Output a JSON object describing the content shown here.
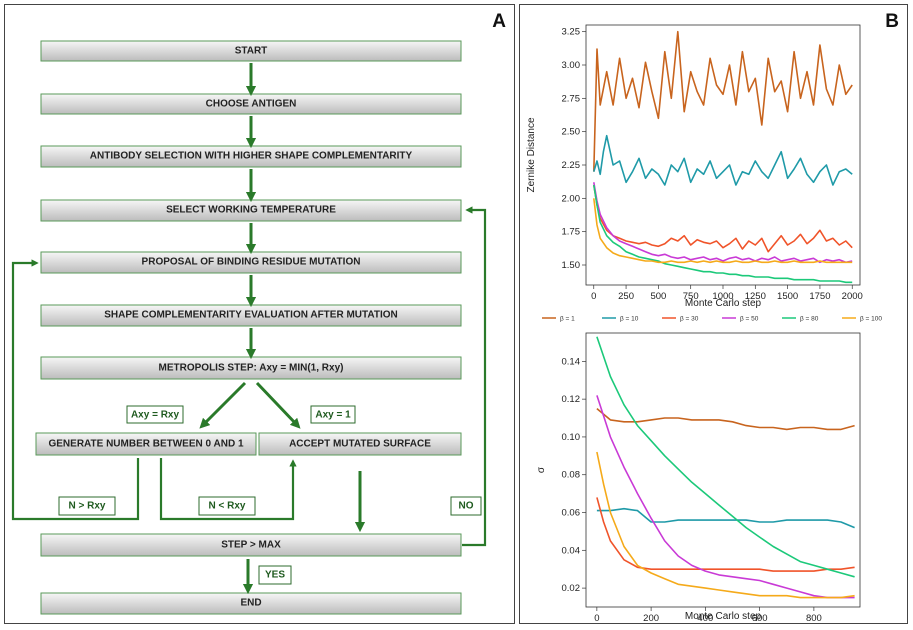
{
  "panel_a": {
    "letter": "A",
    "steps": [
      "START",
      "CHOOSE ANTIGEN",
      "ANTIBODY SELECTION WITH HIGHER  SHAPE COMPLEMENTARITY",
      "SELECT WORKING TEMPERATURE",
      "PROPOSAL OF BINDING  RESIDUE MUTATION",
      "SHAPE COMPLEMENTARITY EVALUATION AFTER MUTATION",
      "METROPOLIS STEP: Axy = MIN(1, Rxy)",
      "GENERATE NUMBER BETWEEN 0 AND 1",
      "ACCEPT MUTATED SURFACE",
      "STEP > MAX",
      "END"
    ],
    "labels": {
      "axy_rxy": "Axy = Rxy",
      "axy_1": "Axy = 1",
      "n_gt": "N > Rxy",
      "n_lt": "N < Rxy",
      "no": "NO",
      "yes": "YES"
    },
    "colors": {
      "arrow": "#2a7a2a",
      "box_top": "#f4f4f4",
      "box_bottom": "#bdbdbd",
      "box_border": "#5a9a5a"
    }
  },
  "panel_b": {
    "letter": "B",
    "series_colors": [
      "#c8641e",
      "#1f9aa8",
      "#f0542a",
      "#c93ad6",
      "#1cc97a",
      "#f5aa1a"
    ],
    "legend": [
      "β = 1",
      "β = 10",
      "β = 30",
      "β = 50",
      "β = 80",
      "β = 100"
    ]
  },
  "chart_data": [
    {
      "type": "line",
      "title": "",
      "xlabel": "Monte Carlo step",
      "ylabel": "Zernike Distance",
      "xlim": [
        -60,
        2060
      ],
      "ylim": [
        1.35,
        3.3
      ],
      "xticks": [
        0,
        250,
        500,
        750,
        1000,
        1250,
        1500,
        1750,
        2000
      ],
      "yticks": [
        1.5,
        1.75,
        2.0,
        2.25,
        2.5,
        2.75,
        3.0,
        3.25
      ],
      "series": [
        {
          "name": "β = 1",
          "color": "#c8641e",
          "x": [
            0,
            25,
            50,
            100,
            150,
            200,
            250,
            300,
            350,
            400,
            450,
            500,
            550,
            600,
            650,
            700,
            750,
            800,
            850,
            900,
            950,
            1000,
            1050,
            1100,
            1150,
            1200,
            1250,
            1300,
            1350,
            1400,
            1450,
            1500,
            1550,
            1600,
            1650,
            1700,
            1750,
            1800,
            1850,
            1900,
            1950,
            2000
          ],
          "values": [
            2.2,
            3.12,
            2.7,
            2.95,
            2.7,
            3.05,
            2.75,
            2.9,
            2.68,
            3.02,
            2.8,
            2.6,
            3.1,
            2.75,
            3.25,
            2.65,
            2.95,
            2.8,
            2.7,
            3.05,
            2.85,
            2.78,
            3.0,
            2.7,
            3.1,
            2.8,
            2.9,
            2.55,
            3.05,
            2.8,
            2.88,
            2.65,
            3.1,
            2.75,
            2.95,
            2.7,
            3.15,
            2.82,
            2.7,
            3.0,
            2.78,
            2.85
          ]
        },
        {
          "name": "β = 10",
          "color": "#1f9aa8",
          "x": [
            0,
            25,
            50,
            75,
            100,
            150,
            200,
            250,
            300,
            350,
            400,
            450,
            500,
            550,
            600,
            650,
            700,
            750,
            800,
            850,
            900,
            950,
            1000,
            1050,
            1100,
            1150,
            1200,
            1250,
            1300,
            1350,
            1400,
            1450,
            1500,
            1550,
            1600,
            1650,
            1700,
            1750,
            1800,
            1850,
            1900,
            1950,
            2000
          ],
          "values": [
            2.2,
            2.28,
            2.18,
            2.35,
            2.47,
            2.25,
            2.28,
            2.12,
            2.2,
            2.3,
            2.15,
            2.22,
            2.18,
            2.1,
            2.25,
            2.2,
            2.3,
            2.12,
            2.22,
            2.18,
            2.28,
            2.15,
            2.2,
            2.25,
            2.1,
            2.2,
            2.18,
            2.28,
            2.2,
            2.15,
            2.25,
            2.35,
            2.15,
            2.22,
            2.3,
            2.18,
            2.12,
            2.2,
            2.25,
            2.1,
            2.2,
            2.22,
            2.18
          ]
        },
        {
          "name": "β = 30",
          "color": "#f0542a",
          "x": [
            0,
            25,
            50,
            100,
            150,
            200,
            250,
            300,
            350,
            400,
            450,
            500,
            550,
            600,
            650,
            700,
            750,
            800,
            850,
            900,
            950,
            1000,
            1050,
            1100,
            1150,
            1200,
            1250,
            1300,
            1350,
            1400,
            1450,
            1500,
            1550,
            1600,
            1650,
            1700,
            1750,
            1800,
            1850,
            1900,
            1950,
            2000
          ],
          "values": [
            2.1,
            1.95,
            1.85,
            1.76,
            1.72,
            1.7,
            1.68,
            1.67,
            1.66,
            1.67,
            1.65,
            1.64,
            1.66,
            1.7,
            1.68,
            1.72,
            1.65,
            1.69,
            1.67,
            1.66,
            1.68,
            1.63,
            1.66,
            1.7,
            1.62,
            1.68,
            1.65,
            1.7,
            1.6,
            1.66,
            1.72,
            1.65,
            1.68,
            1.73,
            1.66,
            1.7,
            1.76,
            1.68,
            1.7,
            1.65,
            1.68,
            1.63
          ]
        },
        {
          "name": "β = 50",
          "color": "#c93ad6",
          "x": [
            0,
            25,
            50,
            100,
            150,
            200,
            250,
            300,
            350,
            400,
            450,
            500,
            550,
            600,
            650,
            700,
            750,
            800,
            850,
            900,
            950,
            1000,
            1050,
            1100,
            1150,
            1200,
            1250,
            1300,
            1350,
            1400,
            1450,
            1500,
            1550,
            1600,
            1650,
            1700,
            1750,
            1800,
            1850,
            1900,
            1950,
            2000
          ],
          "values": [
            2.12,
            1.98,
            1.88,
            1.78,
            1.72,
            1.68,
            1.66,
            1.64,
            1.62,
            1.6,
            1.58,
            1.57,
            1.58,
            1.56,
            1.55,
            1.56,
            1.54,
            1.55,
            1.56,
            1.54,
            1.55,
            1.53,
            1.55,
            1.56,
            1.54,
            1.55,
            1.53,
            1.55,
            1.54,
            1.56,
            1.53,
            1.54,
            1.55,
            1.53,
            1.54,
            1.55,
            1.52,
            1.54,
            1.53,
            1.54,
            1.52,
            1.53
          ]
        },
        {
          "name": "β = 80",
          "color": "#1cc97a",
          "x": [
            0,
            25,
            50,
            100,
            150,
            200,
            250,
            300,
            350,
            400,
            450,
            500,
            550,
            600,
            650,
            700,
            750,
            800,
            850,
            900,
            950,
            1000,
            1050,
            1100,
            1150,
            1200,
            1250,
            1300,
            1350,
            1400,
            1450,
            1500,
            1550,
            1600,
            1650,
            1700,
            1750,
            1800,
            1850,
            1900,
            1950,
            2000
          ],
          "values": [
            2.1,
            1.95,
            1.82,
            1.72,
            1.67,
            1.64,
            1.6,
            1.58,
            1.56,
            1.55,
            1.54,
            1.53,
            1.51,
            1.5,
            1.49,
            1.48,
            1.47,
            1.46,
            1.45,
            1.45,
            1.44,
            1.44,
            1.43,
            1.43,
            1.42,
            1.42,
            1.41,
            1.41,
            1.41,
            1.4,
            1.4,
            1.4,
            1.39,
            1.39,
            1.39,
            1.39,
            1.38,
            1.38,
            1.38,
            1.38,
            1.37,
            1.37
          ]
        },
        {
          "name": "β = 100",
          "color": "#f5aa1a",
          "x": [
            0,
            25,
            50,
            100,
            150,
            200,
            250,
            300,
            350,
            400,
            450,
            500,
            550,
            600,
            650,
            700,
            750,
            800,
            850,
            900,
            950,
            1000,
            1050,
            1100,
            1150,
            1200,
            1250,
            1300,
            1350,
            1400,
            1450,
            1500,
            1550,
            1600,
            1650,
            1700,
            1750,
            1800,
            1850,
            1900,
            1950,
            2000
          ],
          "values": [
            2.0,
            1.8,
            1.7,
            1.63,
            1.59,
            1.57,
            1.56,
            1.55,
            1.54,
            1.53,
            1.53,
            1.52,
            1.52,
            1.53,
            1.52,
            1.52,
            1.53,
            1.52,
            1.53,
            1.52,
            1.53,
            1.52,
            1.52,
            1.53,
            1.52,
            1.52,
            1.53,
            1.52,
            1.52,
            1.53,
            1.52,
            1.52,
            1.53,
            1.52,
            1.52,
            1.52,
            1.53,
            1.52,
            1.52,
            1.52,
            1.52,
            1.52
          ]
        }
      ]
    },
    {
      "type": "line",
      "title": "",
      "xlabel": "Monte Carlo step",
      "ylabel": "σ",
      "xlim": [
        -40,
        970
      ],
      "ylim": [
        0.01,
        0.155
      ],
      "xticks": [
        0,
        200,
        400,
        600,
        800
      ],
      "yticks": [
        0.02,
        0.04,
        0.06,
        0.08,
        0.1,
        0.12,
        0.14
      ],
      "series": [
        {
          "name": "β = 1",
          "color": "#c8641e",
          "x": [
            0,
            50,
            100,
            150,
            200,
            250,
            300,
            350,
            400,
            450,
            500,
            550,
            600,
            650,
            700,
            750,
            800,
            850,
            900,
            950
          ],
          "values": [
            0.115,
            0.109,
            0.108,
            0.108,
            0.109,
            0.11,
            0.11,
            0.109,
            0.109,
            0.109,
            0.108,
            0.106,
            0.105,
            0.105,
            0.104,
            0.105,
            0.105,
            0.104,
            0.104,
            0.106
          ]
        },
        {
          "name": "β = 10",
          "color": "#1f9aa8",
          "x": [
            0,
            50,
            100,
            150,
            200,
            250,
            300,
            350,
            400,
            450,
            500,
            550,
            600,
            650,
            700,
            750,
            800,
            850,
            900,
            950
          ],
          "values": [
            0.061,
            0.061,
            0.062,
            0.061,
            0.055,
            0.055,
            0.056,
            0.056,
            0.056,
            0.056,
            0.056,
            0.056,
            0.055,
            0.055,
            0.056,
            0.056,
            0.056,
            0.056,
            0.055,
            0.052
          ]
        },
        {
          "name": "β = 30",
          "color": "#f0542a",
          "x": [
            0,
            25,
            50,
            100,
            150,
            200,
            250,
            300,
            350,
            400,
            450,
            500,
            550,
            600,
            650,
            700,
            750,
            800,
            850,
            900,
            950
          ],
          "values": [
            0.068,
            0.055,
            0.045,
            0.035,
            0.031,
            0.03,
            0.03,
            0.03,
            0.03,
            0.03,
            0.03,
            0.03,
            0.03,
            0.03,
            0.029,
            0.029,
            0.029,
            0.029,
            0.03,
            0.03,
            0.031
          ]
        },
        {
          "name": "β = 50",
          "color": "#c93ad6",
          "x": [
            0,
            50,
            100,
            150,
            200,
            250,
            300,
            350,
            400,
            450,
            500,
            550,
            600,
            650,
            700,
            750,
            800,
            850,
            900,
            950
          ],
          "values": [
            0.122,
            0.1,
            0.084,
            0.07,
            0.057,
            0.045,
            0.037,
            0.032,
            0.029,
            0.027,
            0.026,
            0.025,
            0.024,
            0.022,
            0.02,
            0.018,
            0.016,
            0.015,
            0.015,
            0.015
          ]
        },
        {
          "name": "β = 80",
          "color": "#1cc97a",
          "x": [
            0,
            50,
            100,
            150,
            200,
            250,
            300,
            350,
            400,
            450,
            500,
            550,
            600,
            650,
            700,
            750,
            800,
            850,
            900,
            950
          ],
          "values": [
            0.153,
            0.132,
            0.117,
            0.106,
            0.098,
            0.09,
            0.083,
            0.076,
            0.07,
            0.064,
            0.058,
            0.052,
            0.047,
            0.042,
            0.038,
            0.034,
            0.032,
            0.03,
            0.028,
            0.026
          ]
        },
        {
          "name": "β = 100",
          "color": "#f5aa1a",
          "x": [
            0,
            25,
            50,
            100,
            150,
            200,
            250,
            300,
            350,
            400,
            450,
            500,
            550,
            600,
            650,
            700,
            750,
            800,
            850,
            900,
            950
          ],
          "values": [
            0.092,
            0.075,
            0.06,
            0.042,
            0.032,
            0.028,
            0.025,
            0.022,
            0.021,
            0.02,
            0.019,
            0.018,
            0.017,
            0.016,
            0.016,
            0.016,
            0.015,
            0.015,
            0.015,
            0.015,
            0.016
          ]
        }
      ]
    }
  ]
}
